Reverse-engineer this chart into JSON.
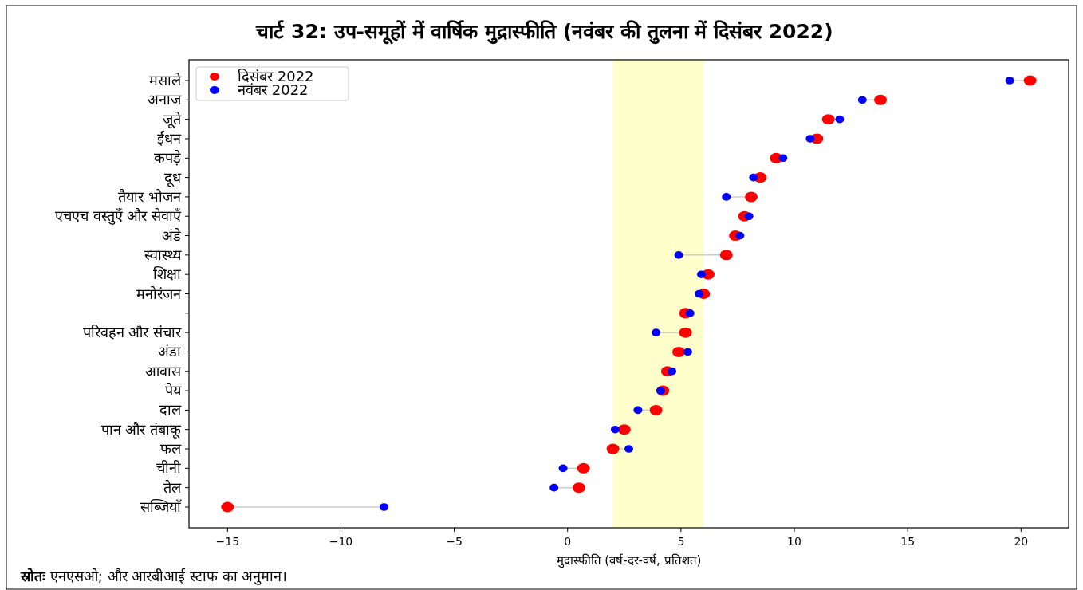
{
  "chart_data": {
    "type": "scatter",
    "orientation": "horizontal",
    "title": "चार्ट 32: उप-समूहों में वार्षिक मुद्रास्फीति (नवंबर की तुलना में दिसंबर 2022)",
    "xlabel": "मुद्रास्फीति (वर्ष-दर-वर्ष, प्रतिशत)",
    "annotations": [
      "**स्रोतः** एनएसओ; और आरबीआई स्टाफ का अनुमान।"
    ],
    "categories": [
      "मसाले",
      "अनाज",
      "जूते",
      "ईंधन",
      "कपड़े",
      "दूध",
      "तैयार भोजन",
      "एचएच वस्तुएँ और सेवाएँ",
      "अंडे",
      "स्वास्थ्य",
      "शिक्षा",
      "मनोरंजन",
      null,
      "परिवहन और संचार",
      "अंडा",
      "आवास",
      "पेय",
      "दाल",
      "पान और तंबाकू",
      "फल",
      "चीनी",
      "तेल",
      "सब्जियाँ"
    ],
    "series": [
      {
        "name": "दिसंबर 2022",
        "color": "#ff0000",
        "values": [
          20.4,
          13.8,
          11.5,
          11.0,
          9.2,
          8.5,
          8.1,
          7.8,
          7.4,
          7.0,
          6.2,
          6.0,
          5.2,
          5.2,
          4.9,
          4.4,
          4.2,
          3.9,
          2.5,
          2.0,
          0.7,
          0.5,
          -15.0
        ]
      },
      {
        "name": "नवंबर 2022",
        "color": "#0000ff",
        "values": [
          19.5,
          13.0,
          12.0,
          10.7,
          9.5,
          8.2,
          7.0,
          8.0,
          7.6,
          4.9,
          5.9,
          5.8,
          5.4,
          3.9,
          5.3,
          4.6,
          4.1,
          3.1,
          2.1,
          2.7,
          -0.2,
          -0.6,
          -8.1
        ]
      }
    ],
    "xlim": [
      -16.7,
      22.1
    ],
    "xticks": [
      {
        "value": -15,
        "label": "−15"
      },
      {
        "value": -10,
        "label": "−10"
      },
      {
        "value": -5,
        "label": "−5"
      },
      0,
      5,
      10,
      15,
      20
    ],
    "bands": [
      {
        "axis": "x",
        "from": 2,
        "to": 6,
        "color": "#ffffcc"
      }
    ],
    "legend": "top left",
    "marker": "circle"
  }
}
